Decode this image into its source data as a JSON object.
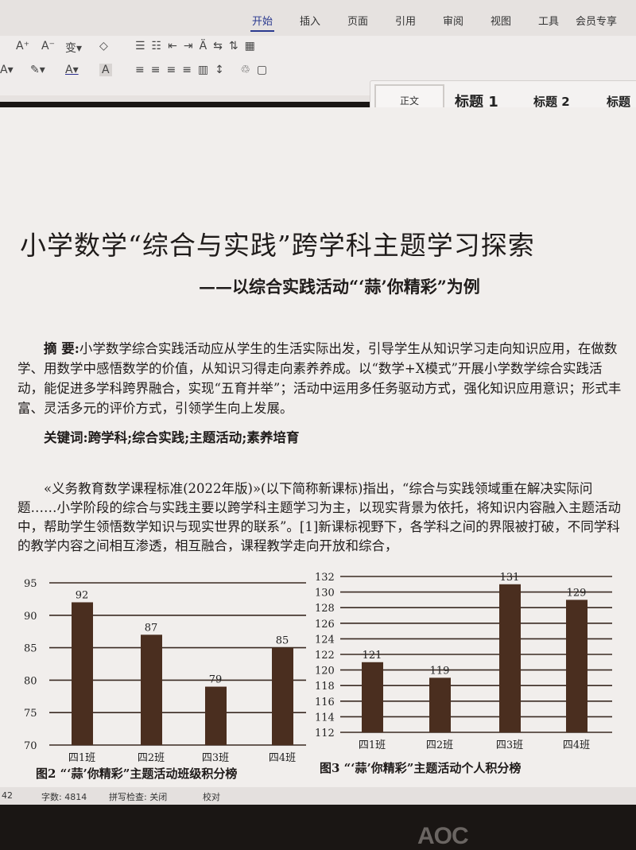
{
  "tabs": [
    "开始",
    "插入",
    "页面",
    "引用",
    "审阅",
    "视图",
    "工具",
    "会员专享"
  ],
  "active_tab": "开始",
  "styles": [
    "正文",
    "标题 1",
    "标题 2",
    "标题"
  ],
  "document": {
    "title": "小学数学“综合与实践”跨学科主题学习探索",
    "subtitle": "——以综合实践活动“‘蒜’你精彩”为例",
    "abstract_label": "摘 要:",
    "abstract": "小学数学综合实践活动应从学生的生活实际出发，引导学生从知识学习走向知识应用，在做数学、用数学中感悟数学的价值，从知识习得走向素养养成。以“数学+X模式”开展小学数学综合实践活动，能促进多学科跨界融合，实现“五育并举”；活动中运用多任务驱动方式，强化知识应用意识；形式丰富、灵活多元的评价方式，引领学生向上发展。",
    "keywords": "关键词:跨学科;综合实践;主题活动;素养培育",
    "body": "«义务教育数学课程标准(2022年版)»(以下简称新课标)指出，“综合与实践领域重在解决实际问题……小学阶段的综合与实践主要以跨学科主题学习为主，以现实背景为依托，将知识内容融入主题活动中，帮助学生领悟数学知识与现实世界的联系”。[1]新课标视野下，各学科之间的界限被打破，不同学科的教学内容之间相互渗透，相互融合，课程教学走向开放和综合，",
    "caption2": "图2 “‘蒜’你精彩”主题活动班级积分榜",
    "caption3": "图3 “‘蒜’你精彩”主题活动个人积分榜"
  },
  "status": {
    "page": "42",
    "words": "字数: 4814",
    "spell": "拼写检查: 关闭",
    "proof": "校对"
  },
  "bezel_logo": "AOC",
  "chart_data": [
    {
      "type": "bar",
      "title": "图2 “‘蒜’你精彩”主题活动班级积分榜",
      "categories": [
        "四1班",
        "四2班",
        "四3班",
        "四4班"
      ],
      "values": [
        92,
        87,
        79,
        85
      ],
      "ylim": [
        70,
        95
      ],
      "yticks": [
        70,
        75,
        80,
        85,
        90,
        95
      ],
      "grid": true,
      "color": "#4a2e1f"
    },
    {
      "type": "bar",
      "title": "图3 “‘蒜’你精彩”主题活动个人积分榜",
      "categories": [
        "四1班",
        "四2班",
        "四3班",
        "四4班"
      ],
      "values": [
        121,
        119,
        131,
        129
      ],
      "ylim": [
        112,
        132
      ],
      "yticks": [
        112,
        114,
        116,
        118,
        120,
        122,
        124,
        126,
        128,
        130,
        132
      ],
      "grid": true,
      "color": "#4a2e1f"
    }
  ]
}
